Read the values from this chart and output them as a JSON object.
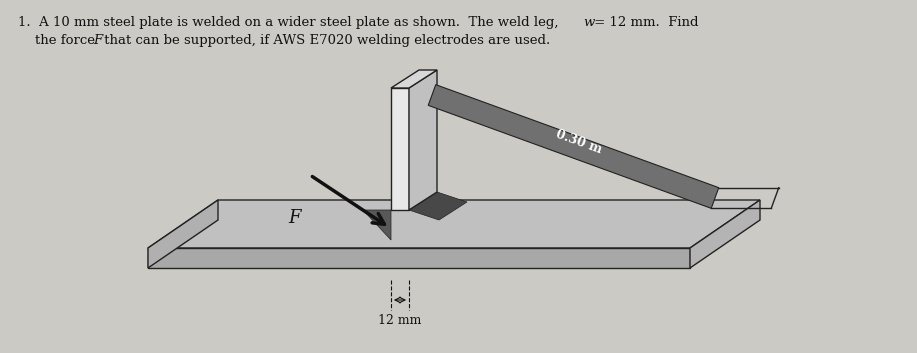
{
  "title_line1": "1.  A 10 mm steel plate is welded on a wider steel plate as shown.  The weld leg, ",
  "title_w": "w",
  "title_eq": " = 12 mm.  Find",
  "title_line2a": "the force ",
  "title_F": "F",
  "title_line2b": " that can be supported, if AWS E7020 welding electrodes are used.",
  "label_F": "F",
  "label_030m": "0.30 m",
  "label_12mm": "12 mm",
  "bg_color": "#cccac4",
  "base_top_color": "#c0c0c0",
  "base_front_color": "#a8a8a8",
  "base_side_color": "#b4b4b4",
  "vert_front_color": "#e8e8e8",
  "vert_top_color": "#d8d8d8",
  "vert_side_color": "#c0c0c0",
  "bar_color": "#707070",
  "weld_color": "#585858",
  "edge_color": "#222222",
  "arrow_color": "#111111",
  "text_color": "#111111",
  "white": "#ffffff",
  "figsize": [
    9.17,
    3.53
  ],
  "dpi": 100
}
